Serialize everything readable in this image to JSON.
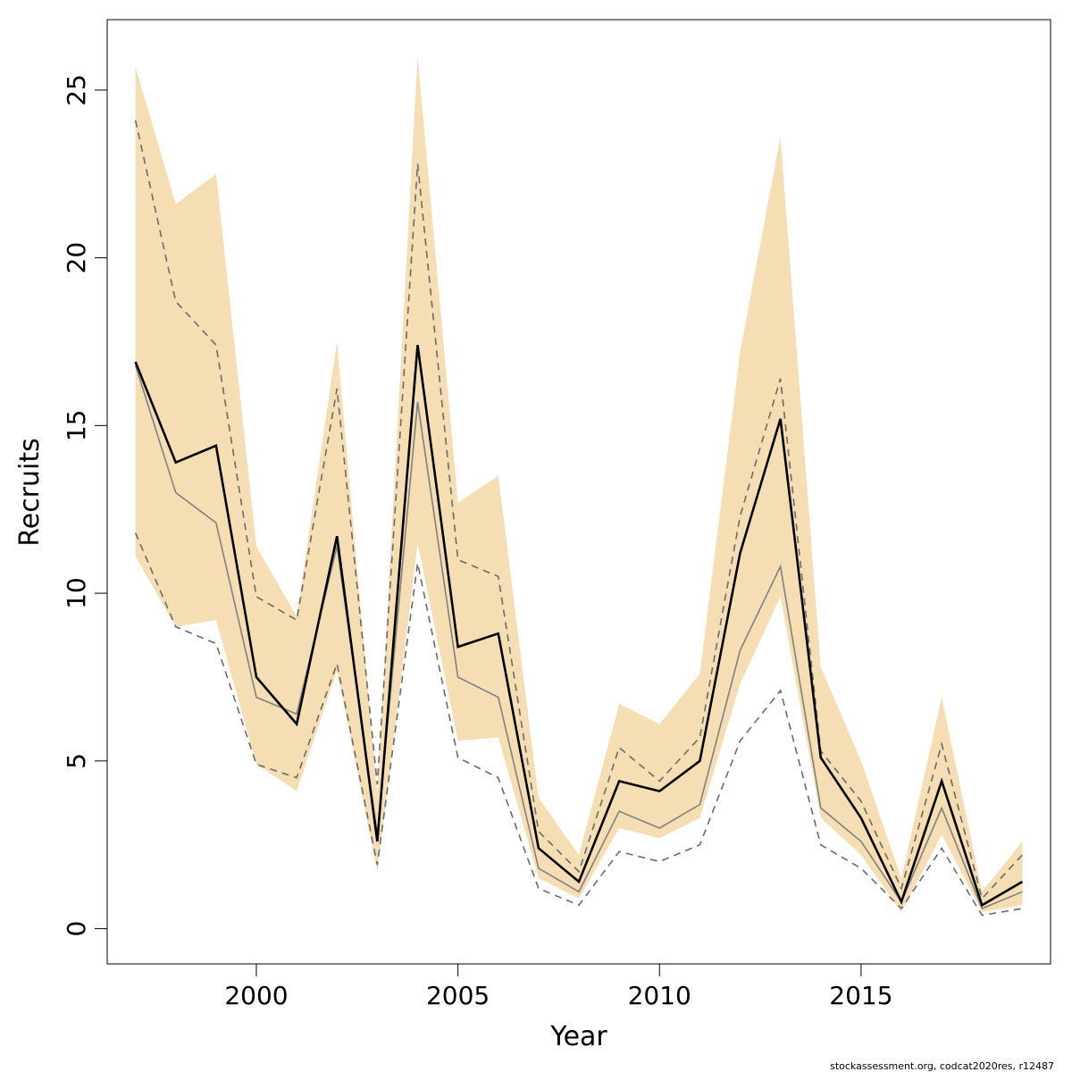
{
  "chart_data": {
    "type": "line",
    "xlabel": "Year",
    "ylabel": "Recruits",
    "xlim": [
      1996.3,
      2019.7
    ],
    "ylim": [
      -1.05,
      27.1
    ],
    "x_ticks": [
      2000,
      2005,
      2010,
      2015
    ],
    "y_ticks": [
      0,
      5,
      10,
      15,
      20,
      25
    ],
    "grid": false,
    "colors": {
      "band": "#f5deb3",
      "main_line": "#000000",
      "secondary_line": "#808080",
      "dashed_line": "#6a6a6a"
    },
    "x": [
      1997,
      1998,
      1999,
      2000,
      2001,
      2002,
      2003,
      2004,
      2005,
      2006,
      2007,
      2008,
      2009,
      2010,
      2011,
      2012,
      2013,
      2014,
      2015,
      2016,
      2017,
      2018,
      2019
    ],
    "band_upper": [
      25.7,
      21.6,
      22.5,
      11.4,
      9.3,
      17.5,
      4.0,
      26.0,
      12.7,
      13.5,
      3.9,
      2.2,
      6.7,
      6.1,
      7.6,
      17.2,
      23.6,
      7.8,
      5.0,
      1.5,
      6.9,
      1.1,
      2.6
    ],
    "band_lower": [
      11.1,
      9.0,
      9.2,
      4.9,
      4.1,
      7.7,
      1.7,
      11.5,
      5.6,
      5.7,
      1.5,
      0.9,
      3.0,
      2.7,
      3.3,
      7.3,
      9.9,
      3.3,
      2.2,
      0.5,
      2.8,
      0.5,
      0.7
    ],
    "series": [
      {
        "line_style": "solid-bold",
        "values": [
          16.9,
          13.9,
          14.4,
          7.5,
          6.1,
          11.7,
          2.6,
          17.4,
          8.4,
          8.8,
          2.4,
          1.4,
          4.4,
          4.1,
          5.0,
          11.2,
          15.2,
          5.1,
          3.3,
          0.8,
          4.4,
          0.7,
          1.4
        ]
      },
      {
        "line_style": "solid-grey",
        "values": [
          16.8,
          13.0,
          12.1,
          6.9,
          6.4,
          11.4,
          2.8,
          15.7,
          7.5,
          6.9,
          1.8,
          1.1,
          3.5,
          3.0,
          3.7,
          8.3,
          10.8,
          3.6,
          2.6,
          0.8,
          3.6,
          0.6,
          1.1
        ]
      },
      {
        "line_style": "dashed",
        "values": [
          24.1,
          18.7,
          17.4,
          9.9,
          9.2,
          16.1,
          4.3,
          22.8,
          11.0,
          10.5,
          2.9,
          1.7,
          5.4,
          4.4,
          5.7,
          12.3,
          16.4,
          5.3,
          3.8,
          1.2,
          5.5,
          0.9,
          2.2
        ]
      },
      {
        "line_style": "dashed",
        "values": [
          11.8,
          9.0,
          8.5,
          4.9,
          4.5,
          7.9,
          1.9,
          10.9,
          5.1,
          4.5,
          1.2,
          0.7,
          2.3,
          2.0,
          2.5,
          5.6,
          7.1,
          2.5,
          1.8,
          0.6,
          2.4,
          0.4,
          0.6
        ]
      }
    ]
  },
  "footer_text": "stockassessment.org, codcat2020res, r12487"
}
